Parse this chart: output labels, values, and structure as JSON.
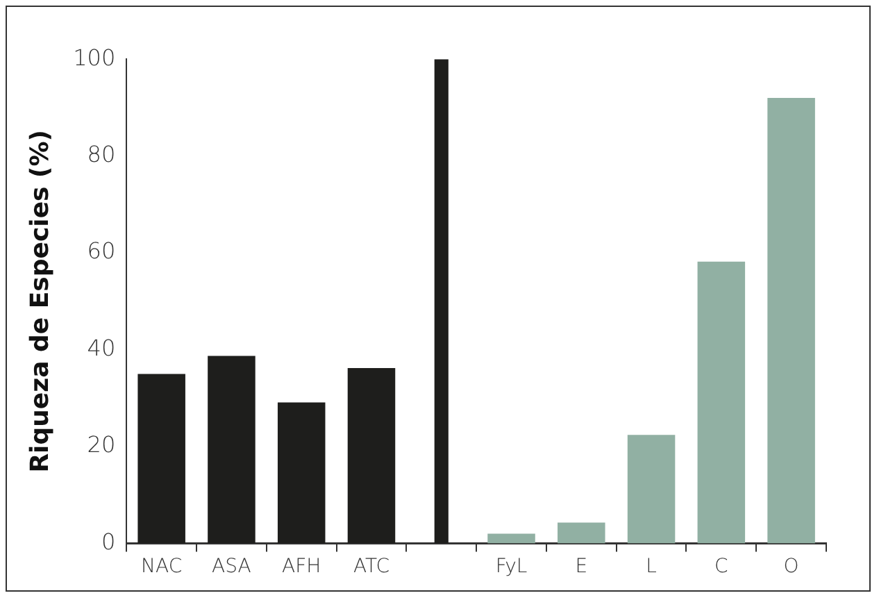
{
  "chart_data": {
    "type": "bar",
    "ylabel": "Riqueza de Especies (%)",
    "categories": [
      "NAC",
      "ASA",
      "AFH",
      "ATC",
      null,
      "FyL",
      "E",
      "L",
      "C",
      "O"
    ],
    "stacked": true,
    "series": [
      {
        "values": [
          35,
          38.7,
          29.1,
          36.2,
          null,
          2,
          4.3,
          22.4,
          58.2,
          92
        ],
        "colors": [
          "#1e1e1c",
          "#1e1e1c",
          "#1e1e1c",
          "#1e1e1c",
          "#1e1e1c",
          "#91b0a3",
          "#91b0a3",
          "#91b0a3",
          "#91b0a3",
          "#91b0a3"
        ]
      },
      {
        "values": [
          null,
          null,
          null,
          null,
          100,
          null,
          null,
          null,
          null,
          null
        ],
        "color": "#1e1e1c"
      }
    ],
    "ylim": [
      0,
      100
    ],
    "yticks": [
      0,
      20,
      40,
      60,
      80,
      100
    ],
    "grid": false,
    "legend": false
  }
}
